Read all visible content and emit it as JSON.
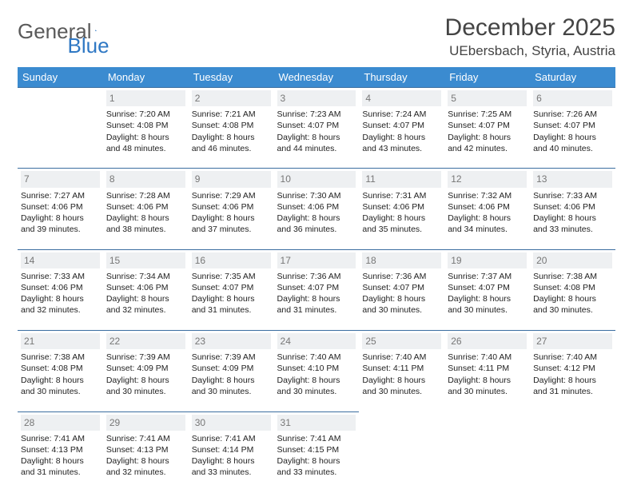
{
  "brand": {
    "name_a": "General",
    "name_b": "Blue"
  },
  "header": {
    "month_title": "December 2025",
    "location": "UEbersbach, Styria, Austria"
  },
  "colors": {
    "header_bg": "#3b8bd0",
    "header_text": "#ffffff",
    "rule": "#3b6ea0",
    "daynum_bg": "#eef0f2",
    "daynum_text": "#777777",
    "body_text": "#222222",
    "logo_gray": "#5a5a5a",
    "logo_blue": "#2f78c4"
  },
  "calendar": {
    "type": "month-grid",
    "days_of_week": [
      "Sunday",
      "Monday",
      "Tuesday",
      "Wednesday",
      "Thursday",
      "Friday",
      "Saturday"
    ],
    "start_offset": 1,
    "days": [
      {
        "n": 1,
        "sunrise": "7:20 AM",
        "sunset": "4:08 PM",
        "daylight": "8 hours and 48 minutes."
      },
      {
        "n": 2,
        "sunrise": "7:21 AM",
        "sunset": "4:08 PM",
        "daylight": "8 hours and 46 minutes."
      },
      {
        "n": 3,
        "sunrise": "7:23 AM",
        "sunset": "4:07 PM",
        "daylight": "8 hours and 44 minutes."
      },
      {
        "n": 4,
        "sunrise": "7:24 AM",
        "sunset": "4:07 PM",
        "daylight": "8 hours and 43 minutes."
      },
      {
        "n": 5,
        "sunrise": "7:25 AM",
        "sunset": "4:07 PM",
        "daylight": "8 hours and 42 minutes."
      },
      {
        "n": 6,
        "sunrise": "7:26 AM",
        "sunset": "4:07 PM",
        "daylight": "8 hours and 40 minutes."
      },
      {
        "n": 7,
        "sunrise": "7:27 AM",
        "sunset": "4:06 PM",
        "daylight": "8 hours and 39 minutes."
      },
      {
        "n": 8,
        "sunrise": "7:28 AM",
        "sunset": "4:06 PM",
        "daylight": "8 hours and 38 minutes."
      },
      {
        "n": 9,
        "sunrise": "7:29 AM",
        "sunset": "4:06 PM",
        "daylight": "8 hours and 37 minutes."
      },
      {
        "n": 10,
        "sunrise": "7:30 AM",
        "sunset": "4:06 PM",
        "daylight": "8 hours and 36 minutes."
      },
      {
        "n": 11,
        "sunrise": "7:31 AM",
        "sunset": "4:06 PM",
        "daylight": "8 hours and 35 minutes."
      },
      {
        "n": 12,
        "sunrise": "7:32 AM",
        "sunset": "4:06 PM",
        "daylight": "8 hours and 34 minutes."
      },
      {
        "n": 13,
        "sunrise": "7:33 AM",
        "sunset": "4:06 PM",
        "daylight": "8 hours and 33 minutes."
      },
      {
        "n": 14,
        "sunrise": "7:33 AM",
        "sunset": "4:06 PM",
        "daylight": "8 hours and 32 minutes."
      },
      {
        "n": 15,
        "sunrise": "7:34 AM",
        "sunset": "4:06 PM",
        "daylight": "8 hours and 32 minutes."
      },
      {
        "n": 16,
        "sunrise": "7:35 AM",
        "sunset": "4:07 PM",
        "daylight": "8 hours and 31 minutes."
      },
      {
        "n": 17,
        "sunrise": "7:36 AM",
        "sunset": "4:07 PM",
        "daylight": "8 hours and 31 minutes."
      },
      {
        "n": 18,
        "sunrise": "7:36 AM",
        "sunset": "4:07 PM",
        "daylight": "8 hours and 30 minutes."
      },
      {
        "n": 19,
        "sunrise": "7:37 AM",
        "sunset": "4:07 PM",
        "daylight": "8 hours and 30 minutes."
      },
      {
        "n": 20,
        "sunrise": "7:38 AM",
        "sunset": "4:08 PM",
        "daylight": "8 hours and 30 minutes."
      },
      {
        "n": 21,
        "sunrise": "7:38 AM",
        "sunset": "4:08 PM",
        "daylight": "8 hours and 30 minutes."
      },
      {
        "n": 22,
        "sunrise": "7:39 AM",
        "sunset": "4:09 PM",
        "daylight": "8 hours and 30 minutes."
      },
      {
        "n": 23,
        "sunrise": "7:39 AM",
        "sunset": "4:09 PM",
        "daylight": "8 hours and 30 minutes."
      },
      {
        "n": 24,
        "sunrise": "7:40 AM",
        "sunset": "4:10 PM",
        "daylight": "8 hours and 30 minutes."
      },
      {
        "n": 25,
        "sunrise": "7:40 AM",
        "sunset": "4:11 PM",
        "daylight": "8 hours and 30 minutes."
      },
      {
        "n": 26,
        "sunrise": "7:40 AM",
        "sunset": "4:11 PM",
        "daylight": "8 hours and 30 minutes."
      },
      {
        "n": 27,
        "sunrise": "7:40 AM",
        "sunset": "4:12 PM",
        "daylight": "8 hours and 31 minutes."
      },
      {
        "n": 28,
        "sunrise": "7:41 AM",
        "sunset": "4:13 PM",
        "daylight": "8 hours and 31 minutes."
      },
      {
        "n": 29,
        "sunrise": "7:41 AM",
        "sunset": "4:13 PM",
        "daylight": "8 hours and 32 minutes."
      },
      {
        "n": 30,
        "sunrise": "7:41 AM",
        "sunset": "4:14 PM",
        "daylight": "8 hours and 33 minutes."
      },
      {
        "n": 31,
        "sunrise": "7:41 AM",
        "sunset": "4:15 PM",
        "daylight": "8 hours and 33 minutes."
      }
    ],
    "labels": {
      "sunrise": "Sunrise:",
      "sunset": "Sunset:",
      "daylight": "Daylight:"
    }
  }
}
